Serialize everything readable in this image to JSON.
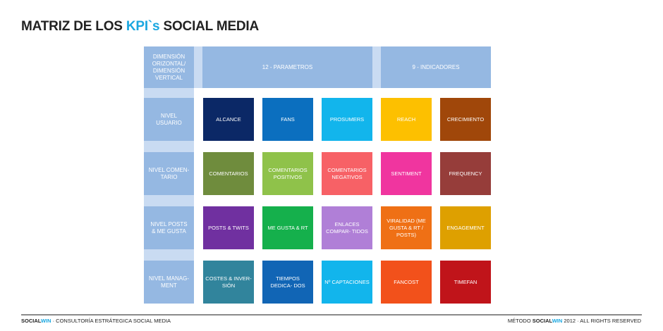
{
  "title": {
    "prefix": "MATRIZ DE LOS ",
    "highlight": "KPI`s",
    "suffix": " SOCIAL MEDIA"
  },
  "colors": {
    "band": "#95b8e2",
    "band_light": "#c9dbf2",
    "accent": "#1aa7e0"
  },
  "header": {
    "corner": "DIMENSIÓN ORIZONTAL/ DIMENSIÓN VERTICAL",
    "parametros": "12 - PARAMETROS",
    "indicadores": "9 - INDICADORES"
  },
  "rows": [
    {
      "label": "NIVEL USUARIO",
      "cells": [
        {
          "label": "ALCANCE",
          "color": "#0b2866"
        },
        {
          "label": "FANS",
          "color": "#0b6fbf"
        },
        {
          "label": "PROSUMERS",
          "color": "#12b5ec"
        },
        {
          "label": "REACH",
          "color": "#fdc000"
        },
        {
          "label": "CRECIMIENTO",
          "color": "#a0470a"
        }
      ]
    },
    {
      "label": "NIVEL COMEN- TARIO",
      "cells": [
        {
          "label": "COMENTARIOS",
          "color": "#6f8c3d"
        },
        {
          "label": "COMENTARIOS POSITIVOS",
          "color": "#8fc24a"
        },
        {
          "label": "COMENTARIOS NEGATIVOS",
          "color": "#f76166"
        },
        {
          "label": "SENTIMENT",
          "color": "#f0359f"
        },
        {
          "label": "FREQUENCY",
          "color": "#963d3a"
        }
      ]
    },
    {
      "label": "NIVEL POSTS & ME GUSTA",
      "cells": [
        {
          "label": "POSTS & TWITS",
          "color": "#7030a0"
        },
        {
          "label": "ME GUSTA & RT",
          "color": "#15b04c"
        },
        {
          "label": "ENLACES COMPAR- TIDOS",
          "color": "#b07fd7"
        },
        {
          "label": "VIRALIDAD (ME GUSTA & RT / POSTS)",
          "color": "#ef7015"
        },
        {
          "label": "ENGAGEMENT",
          "color": "#dea000"
        }
      ]
    },
    {
      "label": "NIVEL MANAG- MENT",
      "cells": [
        {
          "label": "COSTES & INVER- SIÓN",
          "color": "#31849c"
        },
        {
          "label": "TIEMPOS DEDICA- DOS",
          "color": "#1165b5"
        },
        {
          "label": "Nº CAPTACIONES",
          "color": "#12b5ec"
        },
        {
          "label": "FANCOST",
          "color": "#f2511b"
        },
        {
          "label": "TIMEFAN",
          "color": "#c0141a"
        }
      ]
    }
  ],
  "footer": {
    "left_brand_a": "SOCIAL",
    "left_brand_b": "WIN",
    "left_text": " · CONSULTORÍA ESTRÁTEGICA SOCIAL MEDIA",
    "right_prefix": "MÉTODO ",
    "right_brand_a": "SOCIAL",
    "right_brand_b": "WIN",
    "right_text": " 2012 · ALL RIGHTS RESERVED"
  }
}
